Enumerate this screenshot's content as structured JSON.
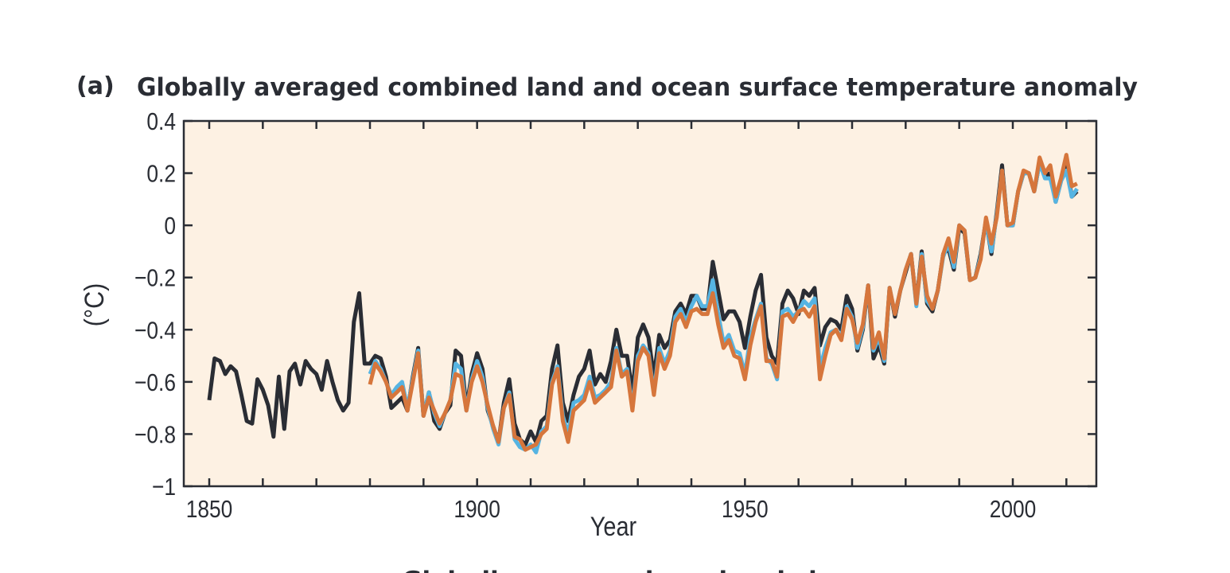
{
  "chart_data": {
    "type": "line",
    "panel_label": "(a)",
    "title": "Globally averaged combined land and ocean surface temperature anomaly",
    "xlabel": "Year",
    "ylabel": "(°C)",
    "xlim": [
      1845,
      2016
    ],
    "ylim": [
      -1,
      0.4
    ],
    "xticks": [
      1850,
      1900,
      1950,
      2000
    ],
    "xtick_labels": [
      "1850",
      "1900",
      "1950",
      "2000"
    ],
    "yticks": [
      0.4,
      0.2,
      0,
      -0.2,
      -0.4,
      -0.6,
      -0.8,
      -1
    ],
    "ytick_labels": [
      "0.4",
      "0.2",
      "0",
      "−0.2",
      "−0.4",
      "−0.6",
      "−0.8",
      "−1"
    ],
    "grid": false,
    "background_color": "#fdf1e3",
    "series": [
      {
        "color": "#2a2d34",
        "x_start": 1850,
        "values": [
          -0.67,
          -0.51,
          -0.52,
          -0.57,
          -0.54,
          -0.56,
          -0.65,
          -0.75,
          -0.76,
          -0.59,
          -0.63,
          -0.69,
          -0.81,
          -0.58,
          -0.78,
          -0.56,
          -0.53,
          -0.61,
          -0.52,
          -0.55,
          -0.57,
          -0.63,
          -0.52,
          -0.6,
          -0.67,
          -0.71,
          -0.68,
          -0.37,
          -0.26,
          -0.53,
          -0.53,
          -0.5,
          -0.51,
          -0.58,
          -0.7,
          -0.68,
          -0.66,
          -0.71,
          -0.58,
          -0.47,
          -0.73,
          -0.64,
          -0.75,
          -0.78,
          -0.72,
          -0.69,
          -0.48,
          -0.5,
          -0.7,
          -0.57,
          -0.49,
          -0.55,
          -0.71,
          -0.77,
          -0.83,
          -0.68,
          -0.59,
          -0.76,
          -0.82,
          -0.84,
          -0.79,
          -0.83,
          -0.75,
          -0.73,
          -0.55,
          -0.46,
          -0.68,
          -0.75,
          -0.65,
          -0.58,
          -0.55,
          -0.48,
          -0.61,
          -0.57,
          -0.6,
          -0.52,
          -0.4,
          -0.5,
          -0.5,
          -0.64,
          -0.43,
          -0.38,
          -0.43,
          -0.58,
          -0.42,
          -0.47,
          -0.44,
          -0.33,
          -0.3,
          -0.34,
          -0.27,
          -0.27,
          -0.32,
          -0.32,
          -0.14,
          -0.25,
          -0.36,
          -0.33,
          -0.33,
          -0.37,
          -0.47,
          -0.35,
          -0.25,
          -0.19,
          -0.43,
          -0.5,
          -0.53,
          -0.3,
          -0.25,
          -0.28,
          -0.34,
          -0.25,
          -0.27,
          -0.24,
          -0.46,
          -0.39,
          -0.36,
          -0.37,
          -0.4,
          -0.27,
          -0.32,
          -0.48,
          -0.4,
          -0.23,
          -0.51,
          -0.46,
          -0.53,
          -0.24,
          -0.35,
          -0.25,
          -0.18,
          -0.11,
          -0.3,
          -0.1,
          -0.3,
          -0.33,
          -0.25,
          -0.11,
          -0.09,
          -0.17,
          -0.01,
          -0.03,
          -0.21,
          -0.2,
          -0.11,
          0.02,
          -0.11,
          0.05,
          0.23,
          0.0,
          0.0,
          0.13,
          0.2,
          0.2,
          0.13,
          0.24,
          0.19,
          0.2,
          0.09,
          0.17,
          0.24,
          0.11,
          0.13
        ]
      },
      {
        "color": "#56b4e2",
        "x_start": 1880,
        "values": [
          -0.57,
          -0.52,
          -0.55,
          -0.6,
          -0.65,
          -0.62,
          -0.6,
          -0.7,
          -0.59,
          -0.48,
          -0.73,
          -0.64,
          -0.72,
          -0.77,
          -0.72,
          -0.67,
          -0.53,
          -0.55,
          -0.71,
          -0.59,
          -0.52,
          -0.58,
          -0.7,
          -0.78,
          -0.84,
          -0.7,
          -0.64,
          -0.82,
          -0.85,
          -0.86,
          -0.84,
          -0.87,
          -0.79,
          -0.77,
          -0.6,
          -0.54,
          -0.73,
          -0.8,
          -0.68,
          -0.67,
          -0.65,
          -0.58,
          -0.66,
          -0.65,
          -0.63,
          -0.6,
          -0.47,
          -0.57,
          -0.55,
          -0.7,
          -0.5,
          -0.46,
          -0.49,
          -0.64,
          -0.47,
          -0.53,
          -0.48,
          -0.35,
          -0.32,
          -0.37,
          -0.31,
          -0.27,
          -0.31,
          -0.31,
          -0.21,
          -0.34,
          -0.45,
          -0.42,
          -0.48,
          -0.49,
          -0.57,
          -0.43,
          -0.36,
          -0.3,
          -0.51,
          -0.53,
          -0.59,
          -0.33,
          -0.32,
          -0.35,
          -0.33,
          -0.29,
          -0.31,
          -0.28,
          -0.55,
          -0.47,
          -0.41,
          -0.4,
          -0.43,
          -0.31,
          -0.35,
          -0.47,
          -0.39,
          -0.23,
          -0.48,
          -0.43,
          -0.52,
          -0.24,
          -0.34,
          -0.25,
          -0.17,
          -0.11,
          -0.31,
          -0.11,
          -0.29,
          -0.32,
          -0.25,
          -0.12,
          -0.07,
          -0.16,
          0.0,
          -0.02,
          -0.21,
          -0.2,
          -0.12,
          0.02,
          -0.1,
          0.04,
          0.21,
          0.0,
          0.0,
          0.13,
          0.2,
          0.2,
          0.13,
          0.24,
          0.18,
          0.18,
          0.09,
          0.17,
          0.21,
          0.11,
          0.14
        ]
      },
      {
        "color": "#d6763c",
        "x_start": 1880,
        "values": [
          -0.61,
          -0.53,
          -0.56,
          -0.6,
          -0.66,
          -0.64,
          -0.62,
          -0.71,
          -0.6,
          -0.49,
          -0.73,
          -0.66,
          -0.71,
          -0.76,
          -0.72,
          -0.67,
          -0.57,
          -0.58,
          -0.71,
          -0.6,
          -0.54,
          -0.6,
          -0.69,
          -0.77,
          -0.83,
          -0.7,
          -0.65,
          -0.81,
          -0.82,
          -0.86,
          -0.85,
          -0.84,
          -0.8,
          -0.78,
          -0.61,
          -0.55,
          -0.75,
          -0.83,
          -0.71,
          -0.69,
          -0.67,
          -0.6,
          -0.68,
          -0.66,
          -0.64,
          -0.62,
          -0.48,
          -0.58,
          -0.56,
          -0.71,
          -0.52,
          -0.47,
          -0.5,
          -0.65,
          -0.49,
          -0.55,
          -0.5,
          -0.37,
          -0.34,
          -0.39,
          -0.33,
          -0.32,
          -0.34,
          -0.34,
          -0.26,
          -0.38,
          -0.47,
          -0.44,
          -0.5,
          -0.51,
          -0.59,
          -0.46,
          -0.37,
          -0.31,
          -0.52,
          -0.52,
          -0.58,
          -0.35,
          -0.34,
          -0.37,
          -0.33,
          -0.32,
          -0.35,
          -0.31,
          -0.59,
          -0.5,
          -0.42,
          -0.4,
          -0.44,
          -0.32,
          -0.36,
          -0.45,
          -0.38,
          -0.23,
          -0.47,
          -0.41,
          -0.51,
          -0.24,
          -0.34,
          -0.25,
          -0.17,
          -0.11,
          -0.3,
          -0.12,
          -0.27,
          -0.32,
          -0.25,
          -0.11,
          -0.05,
          -0.14,
          0.0,
          -0.02,
          -0.21,
          -0.2,
          -0.13,
          0.03,
          -0.07,
          0.03,
          0.21,
          0.0,
          0.01,
          0.13,
          0.21,
          0.2,
          0.13,
          0.26,
          0.2,
          0.23,
          0.11,
          0.18,
          0.27,
          0.15,
          0.16
        ]
      }
    ]
  },
  "next_panel": {
    "title": "Globally averaged sea level change"
  }
}
